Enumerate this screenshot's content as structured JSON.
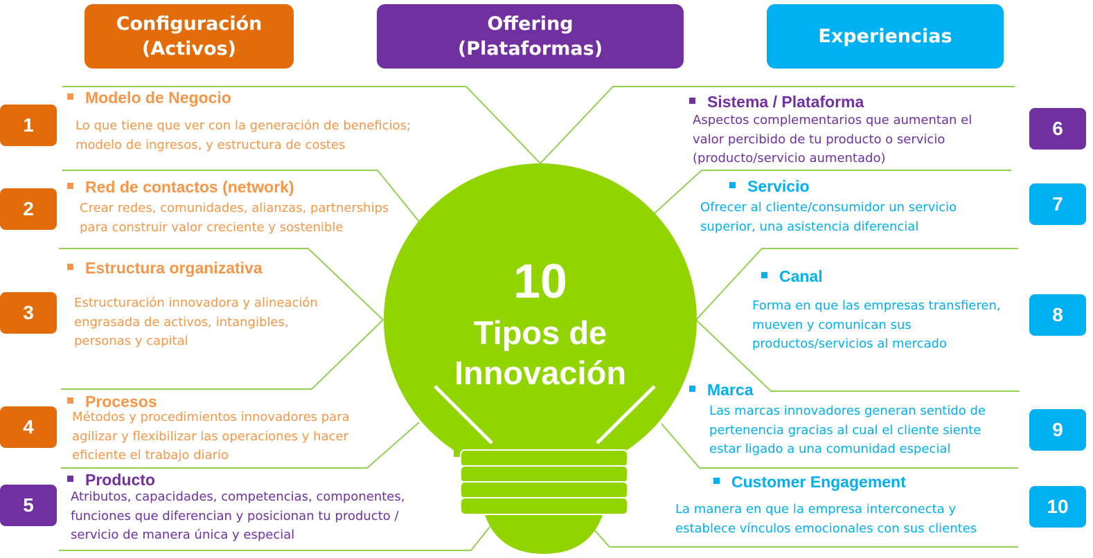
{
  "headers": {
    "configuracion": "Configuración\n(Activos)",
    "offering": "Offering\n(Plataformas)",
    "experiencias": "Experiencias"
  },
  "center": {
    "number": "10",
    "text": "Tipos de\nInnovación"
  },
  "colors": {
    "orange_header": "#E36C0A",
    "orange_text": "#F79646",
    "purple": "#7030A0",
    "blue": "#00B0F0",
    "bulb_green": "#92D400",
    "line_green": "#92D050"
  },
  "items": [
    {
      "number": "1",
      "title": "Modelo de Negocio",
      "description": "Lo que tiene que ver con la generación de beneficios;\nmodelo de ingresos,  y estructura de costes"
    },
    {
      "number": "2",
      "title": "Red de contactos (network)",
      "description": "Crear redes, comunidades, alianzas, partnerships\npara construir valor creciente y sostenible"
    },
    {
      "number": "3",
      "title": "Estructura organizativa",
      "description": "Estructuración innovadora y alineación\nengrasada de activos, intangibles,\npersonas y capital"
    },
    {
      "number": "4",
      "title": "Procesos",
      "description": "Métodos y procedimientos innovadores para\nagilizar y flexibilizar las operaciones y hacer\neficiente el trabajo diario"
    },
    {
      "number": "5",
      "title": "Producto",
      "description": "Atributos, capacidades, competencias, componentes,\nfunciones que diferencian  y posicionan tu producto /\nservicio de manera única y especial"
    },
    {
      "number": "6",
      "title": "Sistema / Plataforma",
      "description": "Aspectos complementarios que aumentan el\nvalor percibido de tu producto o servicio\n(producto/servicio aumentado)"
    },
    {
      "number": "7",
      "title": "Servicio",
      "description": "Ofrecer al cliente/consumidor un servicio\nsuperior, una asistencia diferencial"
    },
    {
      "number": "8",
      "title": "Canal",
      "description": "Forma en que las empresas transfieren,\nmueven y comunican sus\nproductos/servicios al mercado"
    },
    {
      "number": "9",
      "title": "Marca",
      "description": "Las marcas innovadores generan sentido de\npertenencia  gracias al cual el cliente siente\nestar ligado a una comunidad especial"
    },
    {
      "number": "10",
      "title": "Customer Engagement",
      "description": "La manera en que la empresa interconecta y\nestablece vínculos emocionales con sus clientes"
    }
  ]
}
